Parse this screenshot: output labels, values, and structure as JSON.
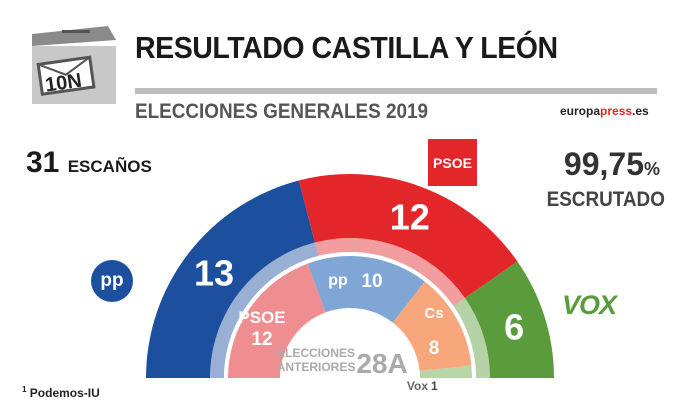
{
  "header": {
    "title": "RESULTADO CASTILLA Y LEÓN",
    "subtitle": "ELECCIONES GENERALES 2019",
    "source_a": "europa",
    "source_b": "press",
    "source_c": ".es",
    "ballot_label": "10N"
  },
  "summary": {
    "seats_number": "31",
    "seats_label": "ESCAÑOS",
    "scrutiny_value": "99,75",
    "scrutiny_unit": "%",
    "scrutiny_label": "ESCRUTADO"
  },
  "logos": {
    "psoe": "PSOE",
    "pp": "pp",
    "vox": "VOX"
  },
  "footnote": {
    "mark": "1",
    "text": "Podemos-IU"
  },
  "chart_data": [
    {
      "type": "pie",
      "subtype": "hemicycle",
      "ring": "outer",
      "total": 31,
      "categories": [
        "PP",
        "PSOE",
        "Vox"
      ],
      "values": [
        13,
        12,
        6
      ],
      "colors": [
        "#1d4f9f",
        "#e3262a",
        "#5a9c3c"
      ],
      "labels": [
        "13",
        "12",
        "6"
      ]
    },
    {
      "type": "pie",
      "subtype": "hemicycle",
      "ring": "inner",
      "title": "ELECCIONES ANTERIORES",
      "title_line1": "ELECCIONES",
      "title_line2": "ANTERIORES",
      "title_tag": "28A",
      "total": 31,
      "categories": [
        "PSOE",
        "PP",
        "Cs",
        "Vox"
      ],
      "values": [
        12,
        10,
        8,
        1
      ],
      "colors": [
        "#ef8e91",
        "#7fa6d4",
        "#f8a67c",
        "#b6d6a5"
      ],
      "labels": [
        "PSOE\n12",
        "pp 10",
        "Cs\n8",
        "Vox 1"
      ]
    }
  ]
}
